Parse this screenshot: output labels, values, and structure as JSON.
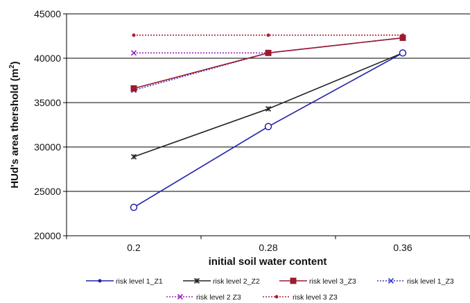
{
  "chart_data": {
    "type": "line",
    "title": "",
    "xlabel": "initial soil water content",
    "ylabel_main": "HUd's area thershold (m",
    "ylabel_sup": "2",
    "ylabel_close": ")",
    "categories": [
      "0.2",
      "0.28",
      "0.36"
    ],
    "ylim": [
      20000,
      45000
    ],
    "yticks": [
      "20000",
      "25000",
      "30000",
      "35000",
      "40000",
      "45000"
    ],
    "grid": "horizontal",
    "legend_position": "bottom",
    "series": [
      {
        "name": "risk level 1_Z1",
        "values": [
          23200,
          32300,
          40600
        ],
        "color": "#1f1fa8",
        "dash": "solid",
        "marker": "circle"
      },
      {
        "name": "risk level 2_Z2",
        "values": [
          28900,
          34300,
          40600
        ],
        "color": "#222222",
        "dash": "solid",
        "marker": "star"
      },
      {
        "name": "risk level 3_Z3",
        "values": [
          36600,
          40600,
          42300
        ],
        "color": "#9a1a2e",
        "dash": "solid",
        "marker": "square"
      },
      {
        "name": "risk level 1_Z3",
        "values": [
          36400,
          40600,
          42300
        ],
        "color": "#3a3acc",
        "dash": "dotted",
        "marker": "x"
      },
      {
        "name": "risk level 2  Z3",
        "values": [
          40600,
          40600,
          42300
        ],
        "color": "#a020c0",
        "dash": "dotted",
        "marker": "x"
      },
      {
        "name": "risk level 3  Z3",
        "values": [
          42600,
          42600,
          42600
        ],
        "color": "#b02030",
        "dash": "dotted",
        "marker": "dot"
      }
    ]
  }
}
